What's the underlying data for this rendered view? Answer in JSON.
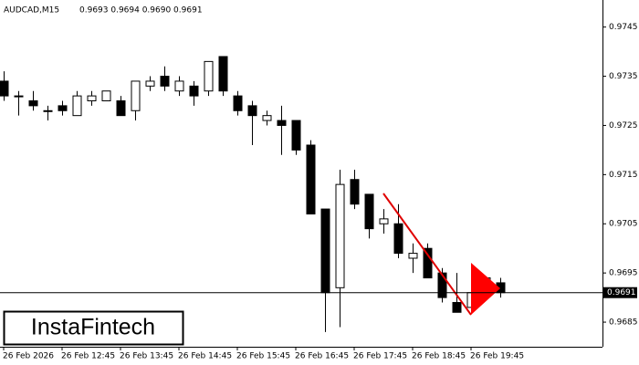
{
  "chart_data": {
    "type": "candlestick",
    "title": "AUDCAD,M15",
    "ohlc_header": "0.9693 0.9694 0.9690 0.9691",
    "logo": "InstaFintech",
    "x": [
      0,
      1,
      2,
      3,
      4,
      5,
      6,
      7,
      8,
      9,
      10,
      11,
      12,
      13,
      14,
      15,
      16,
      17,
      18,
      19,
      20,
      21,
      22,
      23,
      24,
      25,
      26,
      27,
      28,
      29,
      30,
      31,
      32,
      33,
      34
    ],
    "open": [
      0.9734,
      0.9731,
      0.973,
      0.9728,
      0.9729,
      0.9727,
      0.973,
      0.973,
      0.973,
      0.9728,
      0.9733,
      0.9735,
      0.9732,
      0.9733,
      0.9732,
      0.9739,
      0.9731,
      0.9729,
      0.9726,
      0.9726,
      0.9726,
      0.9721,
      0.9708,
      0.9692,
      0.9714,
      0.9711,
      0.9705,
      0.9705,
      0.9698,
      0.97,
      0.9695,
      0.9689,
      0.9688,
      0.9691,
      0.9693
    ],
    "high": [
      0.9736,
      0.9732,
      0.9732,
      0.9729,
      0.973,
      0.9732,
      0.9732,
      0.9732,
      0.9731,
      0.9734,
      0.9735,
      0.9737,
      0.9735,
      0.9734,
      0.9738,
      0.9739,
      0.9732,
      0.973,
      0.9728,
      0.9729,
      0.9726,
      0.9722,
      0.9708,
      0.9716,
      0.9716,
      0.9711,
      0.9708,
      0.9709,
      0.9701,
      0.9701,
      0.9696,
      0.9695,
      0.9693,
      0.9694,
      0.9694
    ],
    "low": [
      0.973,
      0.9727,
      0.9728,
      0.9726,
      0.9727,
      0.9727,
      0.9729,
      0.973,
      0.9727,
      0.9726,
      0.9732,
      0.9732,
      0.9731,
      0.9729,
      0.9731,
      0.9731,
      0.9727,
      0.9721,
      0.9725,
      0.9719,
      0.9719,
      0.9707,
      0.9683,
      0.9684,
      0.9708,
      0.9702,
      0.9703,
      0.9698,
      0.9695,
      0.9694,
      0.9689,
      0.9687,
      0.9687,
      0.969,
      0.969
    ],
    "close": [
      0.9731,
      0.9731,
      0.9729,
      0.9728,
      0.9728,
      0.9731,
      0.9731,
      0.9732,
      0.9727,
      0.9734,
      0.9734,
      0.9733,
      0.9734,
      0.9731,
      0.9738,
      0.9732,
      0.9728,
      0.9727,
      0.9727,
      0.9725,
      0.972,
      0.9707,
      0.9691,
      0.9713,
      0.9709,
      0.9704,
      0.9706,
      0.9699,
      0.9699,
      0.9694,
      0.969,
      0.9687,
      0.9691,
      0.9694,
      0.9691
    ],
    "bull_color": "#ffffff",
    "bear_color": "#000000",
    "current_price": 0.9691,
    "xlim": [
      -0.25,
      41
    ],
    "ylim": [
      0.968,
      0.97505
    ],
    "yticks": [
      0.9745,
      0.9735,
      0.9725,
      0.9715,
      0.9705,
      0.9695,
      0.9685
    ],
    "xticks": [
      {
        "value": 0,
        "label": "26 Feb 2026"
      },
      {
        "value": 4,
        "label": "26 Feb 12:45"
      },
      {
        "value": 8,
        "label": "26 Feb 13:45"
      },
      {
        "value": 12,
        "label": "26 Feb 14:45"
      },
      {
        "value": 16,
        "label": "26 Feb 15:45"
      },
      {
        "value": 20,
        "label": "26 Feb 16:45"
      },
      {
        "value": 24,
        "label": "26 Feb 17:45"
      },
      {
        "value": 28,
        "label": "26 Feb 18:45"
      },
      {
        "value": 32,
        "label": "26 Feb 19:45"
      }
    ]
  }
}
